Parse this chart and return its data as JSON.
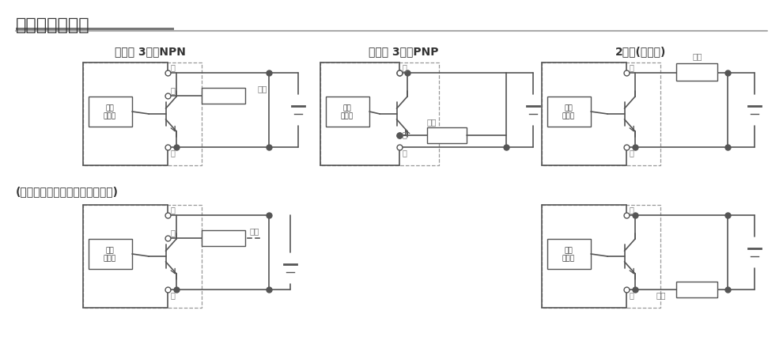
{
  "title": "无触点磁性开关",
  "bg_color": "#ffffff",
  "line_color": "#555555",
  "dashed_color": "#999999",
  "label_color": "#777777",
  "text_color": "#333333",
  "diagrams": {
    "npn_title": "无触点 3线式NPN",
    "pnp_title": "无触点 3线式PNP",
    "wire2_title": "2线式(无触点)",
    "sep_title": "(开关电缆与负载电源分开的场合)"
  }
}
